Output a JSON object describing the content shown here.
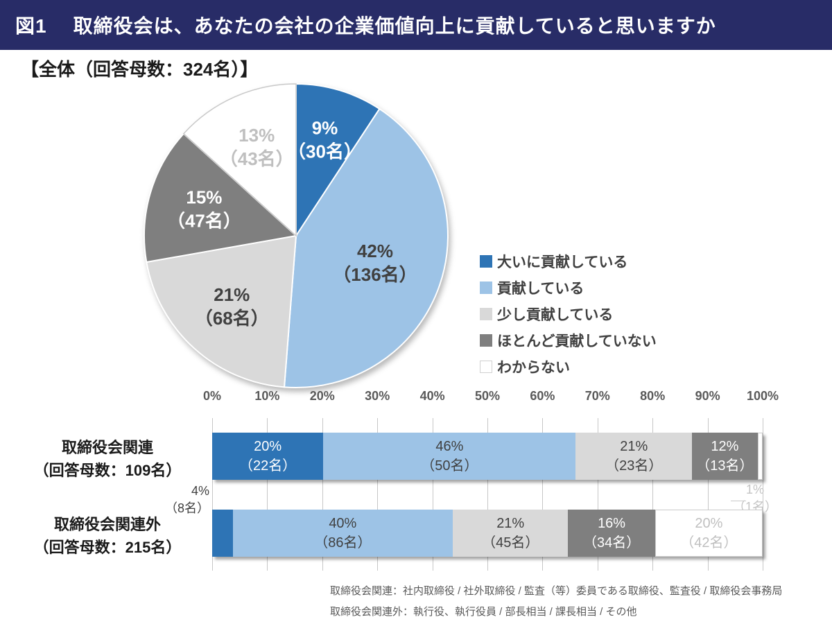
{
  "header": {
    "tag": "図1",
    "title": "取締役会は、あなたの会社の企業価値向上に貢献していると思いますか"
  },
  "pie_heading": "【全体（回答母数：324名）】",
  "palette": {
    "header_bg": "#282c67",
    "grid_line": "#c6c6c6",
    "white_segment_border": "#c9c9c9",
    "dark_text": "#404040",
    "light_text": "#bfbfbf"
  },
  "answer_options": [
    {
      "label": "大いに貢献している",
      "color": "#2e74b5",
      "label_color": "#ffffff"
    },
    {
      "label": "貢献している",
      "color": "#9dc3e6",
      "label_color": "#404040"
    },
    {
      "label": "少し貢献している",
      "color": "#d9d9d9",
      "label_color": "#404040"
    },
    {
      "label": "ほとんど貢献していない",
      "color": "#7f7f7f",
      "label_color": "#ffffff"
    },
    {
      "label": "わからない",
      "color": "#ffffff",
      "label_color": "#bfbfbf"
    }
  ],
  "chart_data": [
    {
      "type": "pie",
      "title": "全体（回答母数：324名）",
      "total": 324,
      "unit": "名",
      "start_angle_deg": 0,
      "direction": "clockwise",
      "segments": [
        {
          "label": "大いに貢献している",
          "pct": "9%",
          "value": 30,
          "count_label": "（30名）",
          "lr": 0.66
        },
        {
          "label": "貢献している",
          "pct": "42%",
          "value": 136,
          "count_label": "（136名）",
          "lr": 0.55
        },
        {
          "label": "少し貢献している",
          "pct": "21%",
          "value": 68,
          "count_label": "（68名）",
          "lr": 0.63
        },
        {
          "label": "ほとんど貢献していない",
          "pct": "15%",
          "value": 47,
          "count_label": "（47名）",
          "lr": 0.63
        },
        {
          "label": "わからない",
          "pct": "13%",
          "value": 43,
          "count_label": "（43名）",
          "lr": 0.64
        }
      ]
    },
    {
      "type": "bar",
      "variant": "horizontal-stacked",
      "x_axis": {
        "ticks": [
          "0%",
          "10%",
          "20%",
          "30%",
          "40%",
          "50%",
          "60%",
          "70%",
          "80%",
          "90%",
          "100%"
        ],
        "min": 0,
        "max": 100,
        "grid": true
      },
      "rows": [
        {
          "label": "取締役会関連",
          "sublabel": "（回答母数：109名）",
          "total": 109,
          "segments": [
            {
              "option": "大いに貢献している",
              "pct": "20%",
              "value": 22,
              "count_label": "（22名）"
            },
            {
              "option": "貢献している",
              "pct": "46%",
              "value": 50,
              "count_label": "（50名）"
            },
            {
              "option": "少し貢献している",
              "pct": "21%",
              "value": 23,
              "count_label": "（23名）"
            },
            {
              "option": "ほとんど貢献していない",
              "pct": "12%",
              "value": 13,
              "count_label": "（13名）"
            },
            {
              "option": "わからない",
              "pct": "1%",
              "value": 1,
              "count_label": "（1名）",
              "outside": true,
              "callout_color": "#c4c4c4"
            }
          ]
        },
        {
          "label": "取締役会関連外",
          "sublabel": "（回答母数：215名）",
          "total": 215,
          "segments": [
            {
              "option": "大いに貢献している",
              "pct": "4%",
              "value": 8,
              "count_label": "（8名）",
              "outside": true,
              "callout_color": "#404040"
            },
            {
              "option": "貢献している",
              "pct": "40%",
              "value": 86,
              "count_label": "（86名）"
            },
            {
              "option": "少し貢献している",
              "pct": "21%",
              "value": 45,
              "count_label": "（45名）"
            },
            {
              "option": "ほとんど貢献していない",
              "pct": "16%",
              "value": 34,
              "count_label": "（34名）"
            },
            {
              "option": "わからない",
              "pct": "20%",
              "value": 42,
              "count_label": "（42名）"
            }
          ]
        }
      ]
    }
  ],
  "footnotes": [
    "取締役会関連：社内取締役 / 社外取締役 / 監査（等）委員である取締役、監査役 / 取締役会事務局",
    "取締役会関連外：執行役、執行役員 / 部長相当 / 課長相当 / その他"
  ]
}
